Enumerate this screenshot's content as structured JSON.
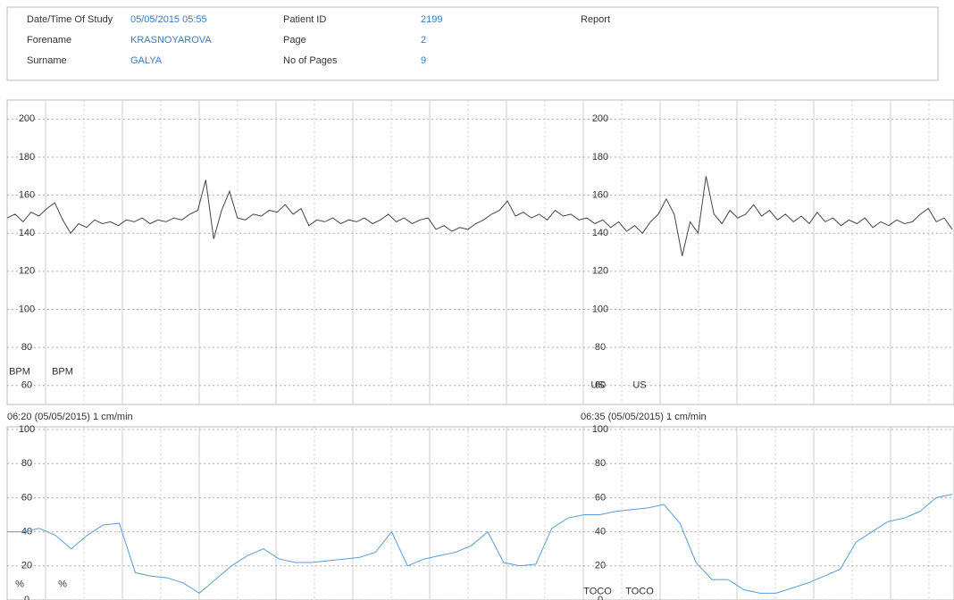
{
  "header": {
    "fields": [
      {
        "label": "Date/Time Of Study",
        "value": "05/05/2015 05:55"
      },
      {
        "label": "Forename",
        "value": "KRASNOYAROVA"
      },
      {
        "label": "Surname",
        "value": "GALYA"
      },
      {
        "label": "Patient ID",
        "value": "2199"
      },
      {
        "label": "Page",
        "value": "2"
      },
      {
        "label": "No of Pages",
        "value": "9"
      }
    ],
    "report": "Report"
  },
  "chart_data": [
    {
      "type": "line",
      "y_label": "BPM",
      "channel": "US",
      "color": "#444444",
      "ylim": [
        50,
        210
      ],
      "yticks": [
        60,
        80,
        100,
        120,
        140,
        160,
        180,
        200
      ],
      "values": [
        148,
        150,
        146,
        151,
        149,
        153,
        156,
        147,
        140,
        145,
        143,
        147,
        145,
        146,
        144,
        147,
        146,
        148,
        145,
        147,
        146,
        148,
        147,
        150,
        152,
        168,
        137,
        152,
        162,
        148,
        147,
        150,
        149,
        152,
        151,
        155,
        150,
        153,
        144,
        147,
        146,
        148,
        145,
        147,
        146,
        148,
        145,
        147,
        150,
        146,
        148,
        145,
        147,
        148,
        142,
        144,
        141,
        143,
        142,
        145,
        147,
        150,
        152,
        157,
        149,
        151,
        148,
        150,
        147,
        152,
        149,
        150,
        147,
        148,
        145,
        147,
        143,
        146,
        141,
        144,
        140,
        146,
        150,
        158,
        150,
        128,
        146,
        140,
        170,
        150,
        145,
        152,
        148,
        150,
        155,
        149,
        152,
        147,
        150,
        146,
        149,
        145,
        151,
        146,
        148,
        144,
        147,
        145,
        148,
        143,
        146,
        144,
        147,
        145,
        146,
        150,
        153,
        146,
        148,
        142
      ]
    },
    {
      "type": "line",
      "y_label": "%",
      "channel": "TOCO",
      "color": "#5b9bd5",
      "annotations": [
        "06:20 (05/05/2015) 1 cm/min",
        "06:35 (05/05/2015) 1 cm/min"
      ],
      "ylim": [
        0,
        100
      ],
      "yticks": [
        0,
        20,
        40,
        60,
        80,
        100
      ],
      "values": [
        40,
        40,
        42,
        38,
        30,
        38,
        44,
        45,
        16,
        14,
        13,
        10,
        4,
        12,
        20,
        26,
        30,
        24,
        22,
        22,
        23,
        24,
        25,
        28,
        40,
        20,
        24,
        26,
        28,
        32,
        40,
        22,
        20,
        21,
        42,
        48,
        50,
        50,
        52,
        53,
        54,
        56,
        45,
        22,
        12,
        12,
        6,
        4,
        4,
        7,
        10,
        14,
        18,
        34,
        40,
        46,
        48,
        52,
        60,
        62
      ]
    }
  ]
}
